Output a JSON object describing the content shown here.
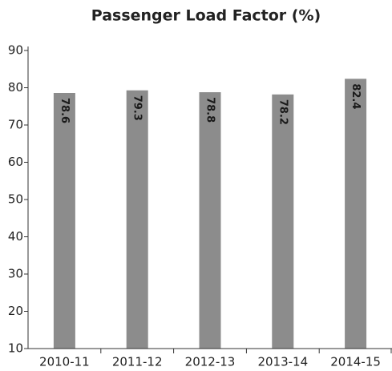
{
  "chart_data": {
    "type": "bar",
    "title": "Passenger Load Factor (%)",
    "categories": [
      "2010-11",
      "2011-12",
      "2012-13",
      "2013-14",
      "2014-15"
    ],
    "values": [
      78.6,
      79.3,
      78.8,
      78.2,
      82.4
    ],
    "color": "#8c8c8c",
    "ylim": [
      10,
      90
    ],
    "yticks": [
      10,
      20,
      30,
      40,
      50,
      60,
      70,
      80,
      90
    ],
    "grid": false
  }
}
